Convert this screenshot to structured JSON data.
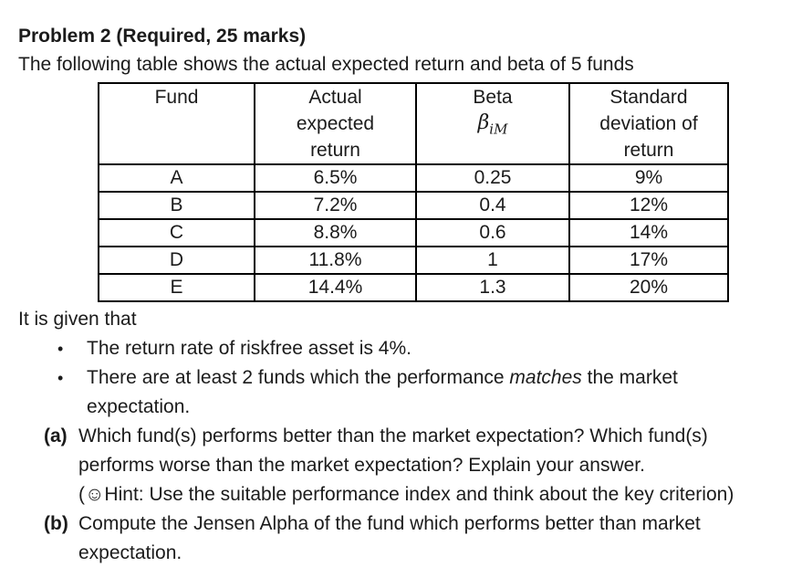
{
  "page": {
    "title": "Problem 2 (Required, 25 marks)",
    "intro": "The following table shows the actual expected return and beta of 5 funds",
    "table": {
      "columns": [
        {
          "lines": [
            "Fund"
          ]
        },
        {
          "lines": [
            "Actual",
            "expected",
            "return"
          ]
        },
        {
          "lines": [
            "Beta"
          ],
          "formula": {
            "symbol": "β",
            "subscript": "iM"
          }
        },
        {
          "lines": [
            "Standard",
            "deviation of",
            "return"
          ]
        }
      ],
      "rows": [
        [
          "A",
          "6.5%",
          "0.25",
          "9%"
        ],
        [
          "B",
          "7.2%",
          "0.4",
          "12%"
        ],
        [
          "C",
          "8.8%",
          "0.6",
          "14%"
        ],
        [
          "D",
          "11.8%",
          "1",
          "17%"
        ],
        [
          "E",
          "14.4%",
          "1.3",
          "20%"
        ]
      ]
    },
    "given_intro": "It is given that",
    "bullet_char": "•",
    "bullet1": "The return rate of riskfree asset is 4%.",
    "bullet2": {
      "line1_pre": "There are at least 2 funds which the performance ",
      "line1_italic": "matches",
      "line1_post": " the market",
      "line2": "expectation."
    },
    "item_a": {
      "marker": "(a)",
      "line1": "Which fund(s) performs better than the market expectation? Which fund(s)",
      "line2": "performs worse than the market expectation? Explain your answer.",
      "hint": "(☺Hint: Use the suitable performance index and think about the key criterion)"
    },
    "item_b": {
      "marker": "(b)",
      "line1": "Compute the Jensen Alpha of the fund which performs better than market",
      "line2": "expectation."
    }
  }
}
